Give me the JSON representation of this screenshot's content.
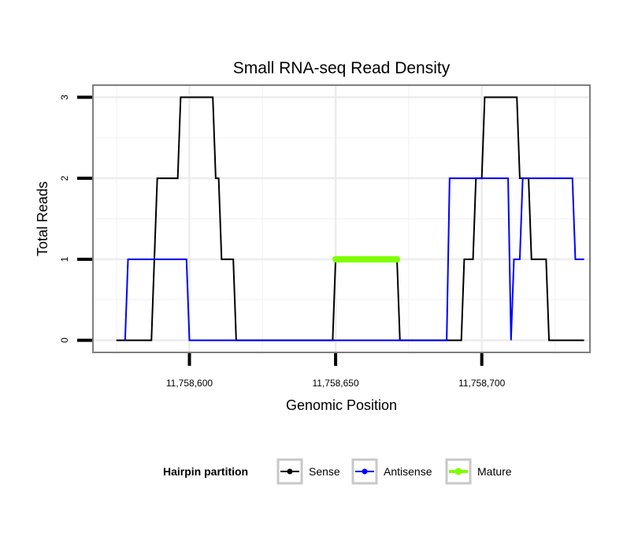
{
  "chart_data": {
    "type": "line",
    "title": "Small RNA-seq Read Density",
    "xlabel": "Genomic Position",
    "ylabel": "Total Reads",
    "xlim": [
      11758567,
      11758737
    ],
    "ylim": [
      -0.15,
      3.15
    ],
    "x_ticks": [
      11758600,
      11758650,
      11758700
    ],
    "x_tick_labels": [
      "11,758,600",
      "11,758,650",
      "11,758,700"
    ],
    "y_ticks": [
      0,
      1,
      2,
      3
    ],
    "y_tick_labels": [
      "0",
      "1",
      "2",
      "3"
    ],
    "grid": true,
    "legend_title": "Hairpin partition",
    "legend_position": "bottom",
    "series": [
      {
        "name": "Sense",
        "color": "#000000",
        "points": [
          [
            11758575,
            0
          ],
          [
            11758587,
            0
          ],
          [
            11758589,
            2
          ],
          [
            11758596,
            2
          ],
          [
            11758597,
            3
          ],
          [
            11758608,
            3
          ],
          [
            11758609,
            2
          ],
          [
            11758610,
            2
          ],
          [
            11758611,
            1
          ],
          [
            11758615,
            1
          ],
          [
            11758616,
            0
          ],
          [
            11758649,
            0
          ],
          [
            11758650,
            1
          ],
          [
            11758671,
            1
          ],
          [
            11758672,
            0
          ],
          [
            11758693,
            0
          ],
          [
            11758694,
            1
          ],
          [
            11758697,
            1
          ],
          [
            11758698,
            2
          ],
          [
            11758700,
            2
          ],
          [
            11758701,
            3
          ],
          [
            11758712,
            3
          ],
          [
            11758713,
            2
          ],
          [
            11758716,
            2
          ],
          [
            11758717,
            1
          ],
          [
            11758722,
            1
          ],
          [
            11758723,
            0
          ],
          [
            11758735,
            0
          ]
        ]
      },
      {
        "name": "Antisense",
        "color": "#0000ff",
        "points": [
          [
            11758578,
            0
          ],
          [
            11758579,
            1
          ],
          [
            11758599,
            1
          ],
          [
            11758600,
            0
          ],
          [
            11758688,
            0
          ],
          [
            11758689,
            2
          ],
          [
            11758709,
            2
          ],
          [
            11758710,
            0
          ],
          [
            11758711,
            1
          ],
          [
            11758713,
            1
          ],
          [
            11758714,
            2
          ],
          [
            11758731,
            2
          ],
          [
            11758732,
            1
          ],
          [
            11758735,
            1
          ]
        ]
      },
      {
        "name": "Mature",
        "color": "#7fff00",
        "points": [
          [
            11758650,
            1
          ],
          [
            11758671,
            1
          ]
        ]
      }
    ]
  }
}
